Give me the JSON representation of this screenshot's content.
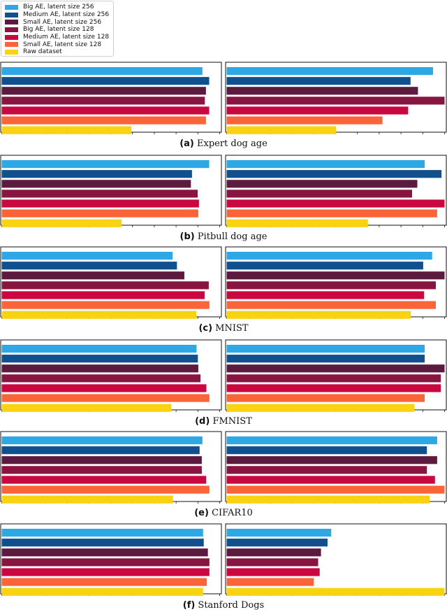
{
  "legend": {
    "items": [
      {
        "label": "Big AE, latent size 256",
        "color": "#2EA8E4"
      },
      {
        "label": "Medium AE, latent size 256",
        "color": "#10508F"
      },
      {
        "label": "Small AE, latent size 256",
        "color": "#5C1A3E"
      },
      {
        "label": "Big AE, latent size 128",
        "color": "#8A1440"
      },
      {
        "label": "Medium AE, latent size 128",
        "color": "#C8083F"
      },
      {
        "label": "Small AE, latent size 128",
        "color": "#FB6339"
      },
      {
        "label": "Raw dataset",
        "color": "#F9D312"
      }
    ]
  },
  "chart_data": [
    {
      "type": "bar",
      "orientation": "horizontal",
      "panel": "a",
      "caption_letter": "(a)",
      "caption_text": "Expert dog age",
      "series": [
        "Big AE, latent size 256",
        "Medium AE, latent size 256",
        "Small AE, latent size 256",
        "Big AE, latent size 128",
        "Medium AE, latent size 128",
        "Small AE, latent size 128",
        "Raw dataset"
      ],
      "left_values": [
        0.921,
        0.952,
        0.937,
        0.932,
        0.952,
        0.937,
        0.595
      ],
      "right_values": [
        0.947,
        0.844,
        0.878,
        1.0,
        0.833,
        0.715,
        0.502
      ],
      "xlim": [
        0,
        1
      ]
    },
    {
      "type": "bar",
      "orientation": "horizontal",
      "panel": "b",
      "caption_letter": "(b)",
      "caption_text": "Pitbull dog age",
      "series": [
        "Big AE, latent size 256",
        "Medium AE, latent size 256",
        "Small AE, latent size 256",
        "Big AE, latent size 128",
        "Medium AE, latent size 128",
        "Small AE, latent size 128",
        "Raw dataset"
      ],
      "left_values": [
        0.952,
        0.873,
        0.868,
        0.899,
        0.905,
        0.902,
        0.55
      ],
      "right_values": [
        0.909,
        0.986,
        0.875,
        0.851,
        1.0,
        0.966,
        0.648
      ],
      "xlim": [
        0,
        1
      ]
    },
    {
      "type": "bar",
      "orientation": "horizontal",
      "panel": "c",
      "caption_letter": "(c)",
      "caption_text": "MNIST",
      "series": [
        "Big AE, latent size 256",
        "Medium AE, latent size 256",
        "Small AE, latent size 256",
        "Big AE, latent size 128",
        "Medium AE, latent size 128",
        "Small AE, latent size 128",
        "Raw dataset"
      ],
      "left_values": [
        0.784,
        0.804,
        0.838,
        0.95,
        0.931,
        0.953,
        0.893
      ],
      "right_values": [
        0.943,
        0.902,
        1.0,
        0.96,
        0.906,
        0.96,
        0.845
      ],
      "xlim": [
        0,
        1
      ]
    },
    {
      "type": "bar",
      "orientation": "horizontal",
      "panel": "d",
      "caption_letter": "(d)",
      "caption_text": "FMNIST",
      "series": [
        "Big AE, latent size 256",
        "Medium AE, latent size 256",
        "Small AE, latent size 256",
        "Big AE, latent size 128",
        "Medium AE, latent size 128",
        "Small AE, latent size 128",
        "Raw dataset"
      ],
      "left_values": [
        0.894,
        0.9,
        0.902,
        0.912,
        0.939,
        0.953,
        0.778
      ],
      "right_values": [
        0.909,
        0.909,
        1.0,
        0.983,
        0.983,
        0.909,
        0.862
      ],
      "xlim": [
        0,
        1
      ]
    },
    {
      "type": "bar",
      "orientation": "horizontal",
      "panel": "e",
      "caption_letter": "(e)",
      "caption_text": "CIFAR10",
      "series": [
        "Big AE, latent size 256",
        "Medium AE, latent size 256",
        "Small AE, latent size 256",
        "Big AE, latent size 128",
        "Medium AE, latent size 128",
        "Small AE, latent size 128",
        "Raw dataset"
      ],
      "left_values": [
        0.921,
        0.908,
        0.918,
        0.918,
        0.938,
        0.953,
        0.786
      ],
      "right_values": [
        0.966,
        0.919,
        0.966,
        0.919,
        0.956,
        1.0,
        0.932
      ],
      "xlim": [
        0,
        1
      ]
    },
    {
      "type": "bar",
      "orientation": "horizontal",
      "panel": "f",
      "caption_letter": "(f)",
      "caption_text": "Stanford Dogs",
      "series": [
        "Big AE, latent size 256",
        "Medium AE, latent size 256",
        "Small AE, latent size 256",
        "Big AE, latent size 128",
        "Medium AE, latent size 128",
        "Small AE, latent size 128",
        "Raw dataset"
      ],
      "left_values": [
        0.924,
        0.927,
        0.946,
        0.953,
        0.953,
        0.941,
        0.924
      ],
      "right_values": [
        0.48,
        0.463,
        0.433,
        0.42,
        0.427,
        0.4,
        1.0
      ],
      "xlim": [
        0,
        1
      ]
    }
  ]
}
